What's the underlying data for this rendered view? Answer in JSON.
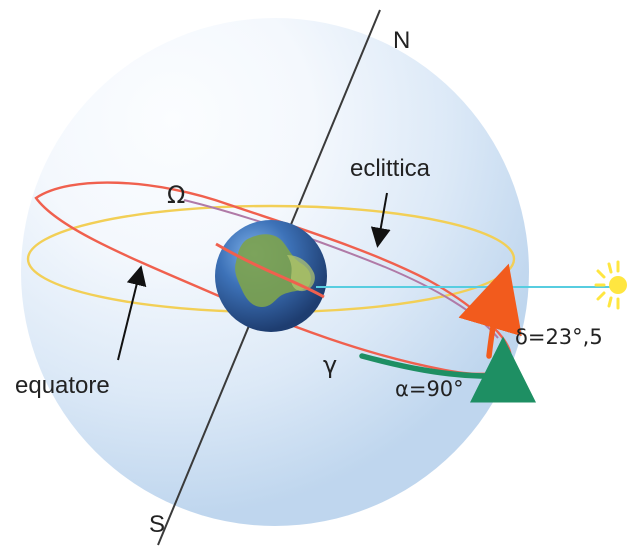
{
  "diagram": {
    "labels": {
      "north": "N",
      "south": "S",
      "ecliptic": "eclittica",
      "equator": "equatore",
      "omega": "Ω",
      "gamma": "γ",
      "alpha": "α=90°",
      "delta": "δ=23°,5"
    },
    "colors": {
      "sphere_light": "#f8fbfe",
      "sphere_mid": "#dceaf7",
      "sphere_dark": "#b9d3ee",
      "ecliptic_ring": "#f2cf56",
      "equator_ring": "#f0604e",
      "equator_purple": "#b07aa7",
      "axis": "#3a3a3a",
      "sun_line": "#57cde0",
      "alpha_arrow": "#1e8f63",
      "delta_arrow": "#f25b1d",
      "sun": "#ffe640",
      "earth_water": "#3f6fb1",
      "earth_land": "#7ca24f"
    },
    "icons": {
      "sun": "sun-icon",
      "earth": "earth-icon",
      "pointer": "pointer-arrow-icon"
    }
  }
}
